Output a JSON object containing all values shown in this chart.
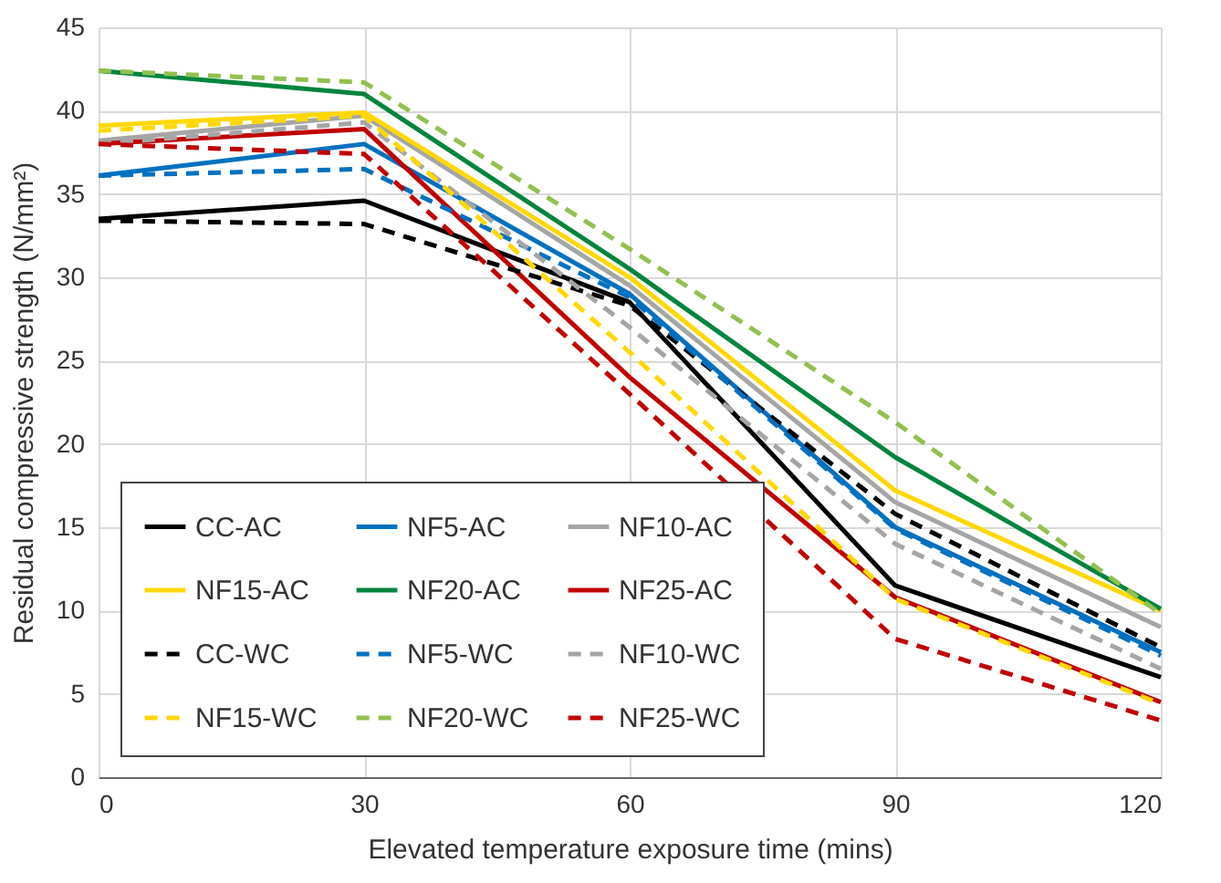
{
  "chart_data": {
    "type": "line",
    "xlabel": "Elevated temperature exposure time (mins)",
    "ylabel": "Residual compressive strength (N/mm²)",
    "x": [
      0,
      30,
      60,
      90,
      120
    ],
    "xlim": [
      0,
      120
    ],
    "xticks": [
      0,
      30,
      60,
      90,
      120
    ],
    "ylim": [
      0,
      45
    ],
    "yticks": [
      0,
      5,
      10,
      15,
      20,
      25,
      30,
      35,
      40,
      45
    ],
    "grid": true,
    "legend": "bottom left",
    "marker": "none",
    "series": [
      {
        "name": "CC-AC",
        "color": "#000000",
        "line_style": "solid",
        "values": [
          33.5,
          34.6,
          28.5,
          11.5,
          6.0
        ]
      },
      {
        "name": "NF5-AC",
        "color": "#0070c0",
        "line_style": "solid",
        "values": [
          36.1,
          38.0,
          29.0,
          15.0,
          7.5
        ]
      },
      {
        "name": "NF10-AC",
        "color": "#a5a5a5",
        "line_style": "solid",
        "values": [
          38.2,
          39.7,
          29.5,
          16.5,
          9.0
        ]
      },
      {
        "name": "NF15-AC",
        "color": "#ffd800",
        "line_style": "solid",
        "values": [
          39.1,
          39.9,
          30.0,
          17.2,
          10.0
        ]
      },
      {
        "name": "NF20-AC",
        "color": "#00843d",
        "line_style": "solid",
        "values": [
          42.4,
          41.0,
          30.5,
          19.2,
          10.1
        ]
      },
      {
        "name": "NF25-AC",
        "color": "#c00000",
        "line_style": "solid",
        "values": [
          38.0,
          38.9,
          24.0,
          10.8,
          4.5
        ]
      },
      {
        "name": "CC-WC",
        "color": "#000000",
        "line_style": "dashed",
        "values": [
          33.4,
          33.2,
          28.3,
          15.8,
          7.8
        ]
      },
      {
        "name": "NF5-WC",
        "color": "#0070c0",
        "line_style": "dashed",
        "values": [
          36.1,
          36.5,
          28.8,
          14.9,
          7.3
        ]
      },
      {
        "name": "NF10-WC",
        "color": "#a5a5a5",
        "line_style": "dashed",
        "values": [
          38.0,
          39.3,
          27.0,
          14.0,
          6.5
        ]
      },
      {
        "name": "NF15-WC",
        "color": "#ffd800",
        "line_style": "dashed",
        "values": [
          38.8,
          39.7,
          25.5,
          10.7,
          4.4
        ]
      },
      {
        "name": "NF20-WC",
        "color": "#92c050",
        "line_style": "dashed",
        "values": [
          42.4,
          41.7,
          31.7,
          21.3,
          9.8
        ]
      },
      {
        "name": "NF25-WC",
        "color": "#c00000",
        "line_style": "dashed",
        "values": [
          38.0,
          37.4,
          23.0,
          8.3,
          3.4
        ]
      }
    ]
  }
}
